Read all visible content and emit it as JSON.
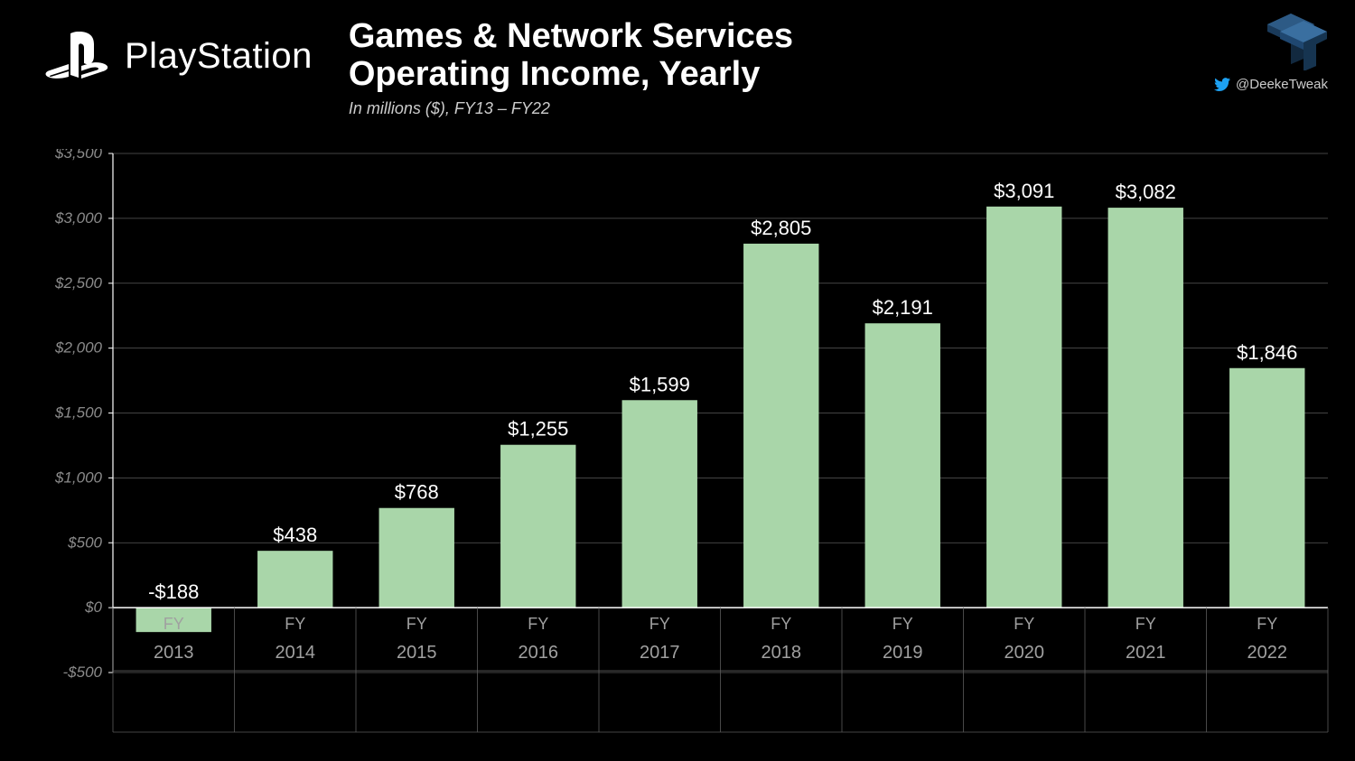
{
  "brand": {
    "name": "PlayStation"
  },
  "title": {
    "line1": "Games & Network Services",
    "line2": "Operating Income, Yearly",
    "subtitle": "In millions ($), FY13 – FY22"
  },
  "attribution": {
    "handle": "@DeekeTweak"
  },
  "chart": {
    "type": "bar",
    "categories": [
      "2013",
      "2014",
      "2015",
      "2016",
      "2017",
      "2018",
      "2019",
      "2020",
      "2021",
      "2022"
    ],
    "category_prefix": "FY",
    "values": [
      -188,
      438,
      768,
      1255,
      1599,
      2805,
      2191,
      3091,
      3082,
      1846
    ],
    "value_labels": [
      "-$188",
      "$438",
      "$768",
      "$1,255",
      "$1,599",
      "$2,805",
      "$2,191",
      "$3,091",
      "$3,082",
      "$1,846"
    ],
    "bar_color": "#a9d6a9",
    "background_color": "#000000",
    "axis_color": "#ffffff",
    "grid_color": "#5a5a5a",
    "ylim": [
      -500,
      3500
    ],
    "ytick_step": 500,
    "ytick_labels": [
      "-$500",
      "$0",
      "$500",
      "$1,000",
      "$1,500",
      "$2,000",
      "$2,500",
      "$3,000",
      "$3,500"
    ],
    "ytick_values": [
      -500,
      0,
      500,
      1000,
      1500,
      2000,
      2500,
      3000,
      3500
    ],
    "value_label_fontsize": 22,
    "value_label_color": "#ffffff",
    "axis_label_fontsize": 17,
    "xaxis_label_color": "#a0a0a0",
    "yaxis_label_color": "#8a8a8a",
    "bar_width_ratio": 0.62,
    "title_fontsize": 38,
    "subtitle_fontsize": 18
  }
}
